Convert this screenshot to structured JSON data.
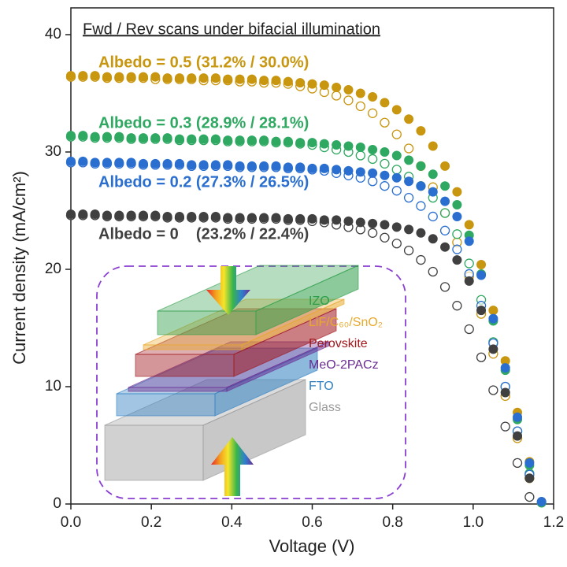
{
  "chart_data": {
    "type": "scatter",
    "title": "Fwd / Rev scans under bifacial illumination",
    "x_label": "Voltage (V)",
    "y_label": "Current density (mA/cm²)",
    "xlim": [
      0,
      1.2
    ],
    "ylim": [
      0,
      40
    ],
    "xticks": [
      {
        "value": 0,
        "label": "0.0"
      },
      0.2,
      0.4,
      0.6,
      0.8,
      {
        "value": 1,
        "label": "1.0"
      },
      1.2
    ],
    "yticks": [
      0,
      10,
      20,
      30,
      40
    ],
    "x": [
      0,
      0.03,
      0.06,
      0.09,
      0.12,
      0.15,
      0.18,
      0.21,
      0.24,
      0.27,
      0.3,
      0.33,
      0.36,
      0.39,
      0.42,
      0.45,
      0.48,
      0.51,
      0.54,
      0.57,
      0.6,
      0.63,
      0.66,
      0.69,
      0.72,
      0.75,
      0.78,
      0.81,
      0.84,
      0.87,
      0.9,
      0.93,
      0.96,
      0.99,
      1.02,
      1.05,
      1.08,
      1.11,
      1.14,
      1.17
    ],
    "series": [
      {
        "name": "Albedo = 0.5 (31.2% / 30.0%)",
        "color": "#c8960f",
        "values": [
          36.5,
          36.5,
          36.5,
          36.4,
          36.4,
          36.4,
          36.4,
          36.4,
          36.3,
          36.3,
          36.3,
          36.3,
          36.3,
          36.2,
          36.2,
          36.2,
          36.1,
          36.1,
          36.0,
          35.9,
          35.8,
          35.7,
          35.5,
          35.3,
          35.0,
          34.7,
          34.2,
          33.6,
          32.8,
          31.8,
          30.5,
          28.8,
          26.6,
          23.8,
          20.4,
          16.5,
          12.2,
          7.8,
          3.6,
          0.2
        ],
        "rev_values": [
          36.4,
          36.4,
          36.4,
          36.3,
          36.3,
          36.3,
          36.3,
          36.2,
          36.2,
          36.2,
          36.2,
          36.1,
          36.1,
          36.1,
          36.0,
          36.0,
          35.9,
          35.9,
          35.8,
          35.6,
          35.4,
          35.1,
          34.8,
          34.4,
          33.9,
          33.3,
          32.5,
          31.5,
          30.3,
          28.8,
          27.0,
          24.8,
          22.3,
          19.4,
          16.2,
          12.8,
          9.2,
          5.6,
          2.2,
          null
        ]
      },
      {
        "name": "Albedo = 0.3 (28.9% / 28.1%)",
        "color": "#2fa862",
        "values": [
          31.4,
          31.4,
          31.3,
          31.3,
          31.3,
          31.2,
          31.2,
          31.2,
          31.2,
          31.1,
          31.1,
          31.1,
          31.1,
          31.0,
          31.0,
          31.0,
          31.0,
          30.9,
          30.9,
          30.8,
          30.8,
          30.7,
          30.6,
          30.5,
          30.4,
          30.2,
          30.0,
          29.7,
          29.3,
          28.8,
          28.1,
          27.1,
          25.5,
          22.9,
          19.6,
          15.6,
          11.4,
          7.2,
          3.3,
          0.1
        ],
        "rev_values": [
          31.3,
          31.3,
          31.2,
          31.2,
          31.2,
          31.1,
          31.1,
          31.1,
          31.1,
          31.0,
          31.0,
          31.0,
          31.0,
          30.9,
          30.9,
          30.9,
          30.9,
          30.8,
          30.8,
          30.7,
          30.6,
          30.4,
          30.2,
          30.0,
          29.7,
          29.4,
          29.0,
          28.5,
          27.9,
          27.1,
          26.1,
          24.8,
          23.0,
          20.5,
          17.4,
          13.8,
          10.0,
          6.2,
          2.6,
          null
        ]
      },
      {
        "name": "Albedo = 0.2 (27.3% / 26.5%)",
        "color": "#2a6fd0",
        "values": [
          29.2,
          29.2,
          29.1,
          29.1,
          29.1,
          29.1,
          29.0,
          29.0,
          29.0,
          29.0,
          28.9,
          28.9,
          28.9,
          28.9,
          28.8,
          28.8,
          28.8,
          28.8,
          28.7,
          28.7,
          28.6,
          28.6,
          28.5,
          28.4,
          28.3,
          28.2,
          28.0,
          27.8,
          27.5,
          27.1,
          26.6,
          25.8,
          24.5,
          22.4,
          19.5,
          15.8,
          11.6,
          7.4,
          3.5,
          0.2
        ],
        "rev_values": [
          29.1,
          29.1,
          29.0,
          29.0,
          29.0,
          29.0,
          28.9,
          28.9,
          28.9,
          28.9,
          28.8,
          28.8,
          28.8,
          28.8,
          28.7,
          28.7,
          28.7,
          28.7,
          28.6,
          28.6,
          28.5,
          28.4,
          28.2,
          28.0,
          27.8,
          27.5,
          27.1,
          26.7,
          26.1,
          25.4,
          24.5,
          23.3,
          21.7,
          19.6,
          16.9,
          13.7,
          10.0,
          6.2,
          2.5,
          null
        ]
      },
      {
        "name": "Albedo = 0    (23.2% / 22.4%)",
        "color": "#404040",
        "values": [
          24.7,
          24.7,
          24.7,
          24.6,
          24.6,
          24.6,
          24.6,
          24.6,
          24.5,
          24.5,
          24.5,
          24.5,
          24.5,
          24.4,
          24.4,
          24.4,
          24.4,
          24.4,
          24.3,
          24.3,
          24.3,
          24.2,
          24.2,
          24.1,
          24.0,
          23.9,
          23.8,
          23.6,
          23.4,
          23.1,
          22.6,
          21.9,
          20.8,
          19.0,
          16.5,
          13.2,
          9.5,
          5.8,
          2.2,
          null
        ],
        "rev_values": [
          24.6,
          24.6,
          24.6,
          24.5,
          24.5,
          24.5,
          24.5,
          24.5,
          24.4,
          24.4,
          24.4,
          24.4,
          24.4,
          24.3,
          24.3,
          24.3,
          24.3,
          24.3,
          24.2,
          24.2,
          24.1,
          24.0,
          23.8,
          23.6,
          23.4,
          23.1,
          22.7,
          22.2,
          21.6,
          20.8,
          19.8,
          18.5,
          16.9,
          14.9,
          12.5,
          9.7,
          6.6,
          3.5,
          0.6,
          null
        ]
      }
    ],
    "inset": {
      "layers": [
        {
          "label": "IZO",
          "color": "#2e9e4a"
        },
        {
          "label": "LiF/C₆₀/SnO₂",
          "color": "#e8a92c"
        },
        {
          "label": "Perovskite",
          "color": "#a0161c"
        },
        {
          "label": "MeO-2PACz",
          "color": "#6a2c91"
        },
        {
          "label": "FTO",
          "color": "#2f7fc1"
        },
        {
          "label": "Glass",
          "color": "#9a9a9a"
        }
      ]
    }
  }
}
